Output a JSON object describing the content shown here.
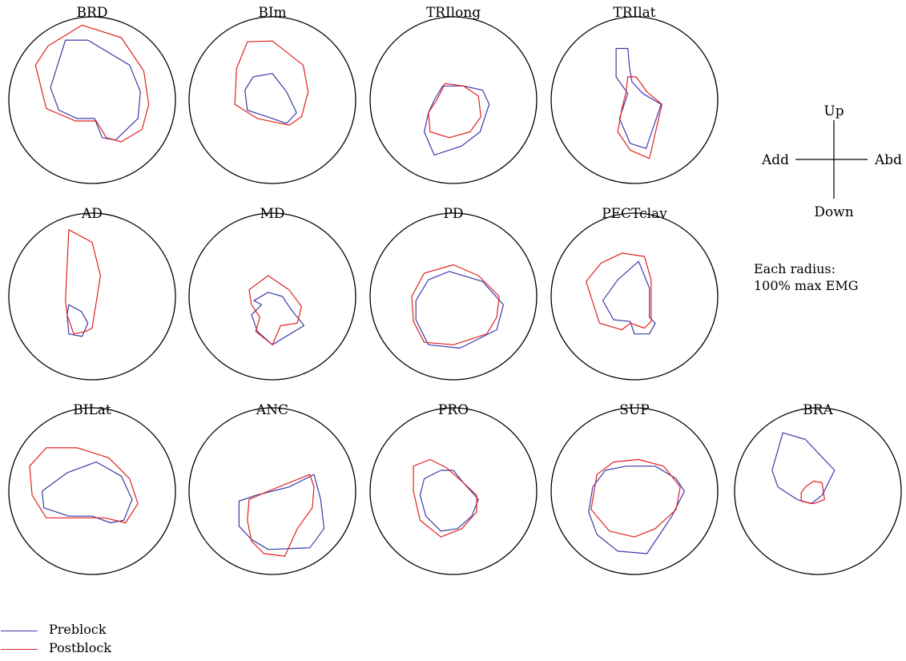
{
  "colors": {
    "preblock": "#3b3bab",
    "postblock": "#e02020"
  },
  "chart_data": {
    "type": "polar",
    "grid": false,
    "legend_placement": "bottom-left",
    "series_names": [
      "Preblock",
      "Postblock"
    ],
    "compass": {
      "up": "Up",
      "down": "Down",
      "left": "Add",
      "right": "Abd"
    },
    "note": [
      "Each radius:",
      "100% max EMG"
    ],
    "muscles": [
      {
        "name": "BRD",
        "preblock": [
          [
            -0.32,
            0.72
          ],
          [
            -0.05,
            0.72
          ],
          [
            0.45,
            0.42
          ],
          [
            0.58,
            0.1
          ],
          [
            0.55,
            -0.22
          ],
          [
            0.28,
            -0.48
          ],
          [
            0.12,
            -0.45
          ],
          [
            0.03,
            -0.22
          ],
          [
            -0.18,
            -0.22
          ],
          [
            -0.4,
            -0.12
          ],
          [
            -0.5,
            0.15
          ]
        ],
        "postblock": [
          [
            -0.68,
            0.42
          ],
          [
            -0.53,
            0.65
          ],
          [
            -0.12,
            0.9
          ],
          [
            0.35,
            0.75
          ],
          [
            0.62,
            0.35
          ],
          [
            0.68,
            -0.05
          ],
          [
            0.6,
            -0.35
          ],
          [
            0.35,
            -0.5
          ],
          [
            0.17,
            -0.45
          ],
          [
            0.05,
            -0.25
          ],
          [
            -0.2,
            -0.25
          ],
          [
            -0.55,
            -0.1
          ]
        ]
      },
      {
        "name": "BIm",
        "preblock": [
          [
            -0.33,
            0.12
          ],
          [
            -0.23,
            0.28
          ],
          [
            0.0,
            0.32
          ],
          [
            0.17,
            0.1
          ],
          [
            0.29,
            -0.15
          ],
          [
            0.17,
            -0.28
          ],
          [
            -0.06,
            -0.2
          ],
          [
            -0.3,
            -0.12
          ]
        ],
        "postblock": [
          [
            -0.3,
            0.7
          ],
          [
            0.0,
            0.71
          ],
          [
            0.37,
            0.42
          ],
          [
            0.43,
            0.1
          ],
          [
            0.35,
            -0.2
          ],
          [
            0.2,
            -0.3
          ],
          [
            -0.18,
            -0.22
          ],
          [
            -0.45,
            -0.05
          ],
          [
            -0.43,
            0.38
          ]
        ]
      },
      {
        "name": "TRIlong",
        "preblock": [
          [
            -0.23,
            0.0
          ],
          [
            -0.13,
            0.17
          ],
          [
            0.12,
            0.17
          ],
          [
            0.35,
            0.12
          ],
          [
            0.43,
            -0.05
          ],
          [
            0.32,
            -0.38
          ],
          [
            0.1,
            -0.55
          ],
          [
            -0.23,
            -0.66
          ],
          [
            -0.35,
            -0.38
          ],
          [
            -0.3,
            -0.15
          ]
        ],
        "postblock": [
          [
            -0.2,
            0.0
          ],
          [
            -0.1,
            0.2
          ],
          [
            0.12,
            0.17
          ],
          [
            0.3,
            0.05
          ],
          [
            0.33,
            -0.2
          ],
          [
            0.2,
            -0.38
          ],
          [
            -0.05,
            -0.45
          ],
          [
            -0.28,
            -0.38
          ],
          [
            -0.3,
            -0.15
          ]
        ]
      },
      {
        "name": "TRIlat",
        "preblock": [
          [
            -0.22,
            0.62
          ],
          [
            -0.08,
            0.62
          ],
          [
            -0.06,
            0.4
          ],
          [
            -0.03,
            0.22
          ],
          [
            0.1,
            0.08
          ],
          [
            0.32,
            -0.05
          ],
          [
            0.14,
            -0.58
          ],
          [
            -0.05,
            -0.52
          ],
          [
            -0.18,
            -0.22
          ],
          [
            -0.08,
            0.08
          ],
          [
            -0.22,
            0.28
          ]
        ],
        "postblock": [
          [
            -0.08,
            0.28
          ],
          [
            0.02,
            0.28
          ],
          [
            0.15,
            0.1
          ],
          [
            0.33,
            -0.05
          ],
          [
            0.18,
            -0.7
          ],
          [
            -0.05,
            -0.6
          ],
          [
            -0.2,
            -0.38
          ],
          [
            -0.15,
            -0.1
          ],
          [
            -0.1,
            0.1
          ]
        ]
      },
      {
        "name": "AD",
        "preblock": [
          [
            -0.28,
            -0.1
          ],
          [
            -0.13,
            -0.18
          ],
          [
            -0.05,
            -0.32
          ],
          [
            -0.12,
            -0.48
          ],
          [
            -0.28,
            -0.45
          ],
          [
            -0.3,
            -0.22
          ]
        ],
        "postblock": [
          [
            -0.28,
            0.8
          ],
          [
            0.0,
            0.65
          ],
          [
            0.1,
            0.25
          ],
          [
            0.0,
            -0.38
          ],
          [
            -0.08,
            -0.42
          ],
          [
            -0.22,
            -0.45
          ],
          [
            -0.3,
            -0.22
          ],
          [
            -0.32,
            -0.05
          ]
        ]
      },
      {
        "name": "MD",
        "preblock": [
          [
            -0.22,
            -0.05
          ],
          [
            -0.05,
            0.05
          ],
          [
            0.12,
            0.0
          ],
          [
            0.22,
            -0.15
          ],
          [
            0.38,
            -0.35
          ],
          [
            0.0,
            -0.58
          ],
          [
            -0.18,
            -0.42
          ],
          [
            -0.25,
            -0.22
          ],
          [
            -0.13,
            -0.1
          ]
        ],
        "postblock": [
          [
            -0.28,
            0.08
          ],
          [
            -0.05,
            0.25
          ],
          [
            0.2,
            0.08
          ],
          [
            0.35,
            -0.12
          ],
          [
            0.3,
            -0.32
          ],
          [
            0.1,
            -0.35
          ],
          [
            0.0,
            -0.58
          ],
          [
            -0.2,
            -0.42
          ],
          [
            -0.15,
            -0.25
          ],
          [
            -0.25,
            -0.1
          ]
        ]
      },
      {
        "name": "PD",
        "preblock": [
          [
            -0.45,
            -0.05
          ],
          [
            -0.3,
            0.2
          ],
          [
            -0.05,
            0.3
          ],
          [
            0.35,
            0.18
          ],
          [
            0.6,
            -0.1
          ],
          [
            0.52,
            -0.4
          ],
          [
            0.08,
            -0.62
          ],
          [
            -0.3,
            -0.58
          ],
          [
            -0.45,
            -0.28
          ]
        ],
        "postblock": [
          [
            -0.5,
            0.0
          ],
          [
            -0.35,
            0.28
          ],
          [
            0.0,
            0.38
          ],
          [
            0.3,
            0.25
          ],
          [
            0.55,
            0.0
          ],
          [
            0.52,
            -0.25
          ],
          [
            0.4,
            -0.45
          ],
          [
            0.0,
            -0.58
          ],
          [
            -0.35,
            -0.55
          ],
          [
            -0.48,
            -0.3
          ]
        ]
      },
      {
        "name": "PECTclav",
        "preblock": [
          [
            -0.38,
            -0.05
          ],
          [
            -0.2,
            0.2
          ],
          [
            0.05,
            0.42
          ],
          [
            0.18,
            0.1
          ],
          [
            0.18,
            -0.25
          ],
          [
            0.25,
            -0.32
          ],
          [
            0.18,
            -0.45
          ],
          [
            0.0,
            -0.45
          ],
          [
            -0.05,
            -0.3
          ],
          [
            -0.25,
            -0.28
          ]
        ],
        "postblock": [
          [
            -0.58,
            0.18
          ],
          [
            -0.4,
            0.4
          ],
          [
            -0.15,
            0.52
          ],
          [
            0.12,
            0.48
          ],
          [
            0.2,
            0.2
          ],
          [
            0.2,
            -0.3
          ],
          [
            0.12,
            -0.38
          ],
          [
            -0.05,
            -0.32
          ],
          [
            -0.15,
            -0.4
          ],
          [
            -0.42,
            -0.32
          ]
        ]
      },
      {
        "name": "BILat",
        "preblock": [
          [
            -0.6,
            0.0
          ],
          [
            -0.3,
            0.22
          ],
          [
            0.05,
            0.35
          ],
          [
            0.35,
            0.18
          ],
          [
            0.48,
            -0.1
          ],
          [
            0.38,
            -0.35
          ],
          [
            0.22,
            -0.38
          ],
          [
            0.0,
            -0.3
          ],
          [
            -0.28,
            -0.3
          ],
          [
            -0.58,
            -0.2
          ]
        ],
        "postblock": [
          [
            -0.75,
            0.3
          ],
          [
            -0.55,
            0.52
          ],
          [
            -0.18,
            0.52
          ],
          [
            0.2,
            0.4
          ],
          [
            0.45,
            0.15
          ],
          [
            0.55,
            -0.15
          ],
          [
            0.4,
            -0.38
          ],
          [
            0.15,
            -0.32
          ],
          [
            -0.2,
            -0.32
          ],
          [
            -0.55,
            -0.32
          ],
          [
            -0.72,
            -0.05
          ]
        ]
      },
      {
        "name": "ANC",
        "preblock": [
          [
            -0.4,
            -0.12
          ],
          [
            -0.2,
            -0.05
          ],
          [
            0.0,
            0.0
          ],
          [
            0.2,
            0.05
          ],
          [
            0.5,
            0.2
          ],
          [
            0.58,
            -0.1
          ],
          [
            0.62,
            -0.45
          ],
          [
            0.45,
            -0.68
          ],
          [
            -0.05,
            -0.7
          ],
          [
            -0.25,
            -0.58
          ],
          [
            -0.4,
            -0.42
          ]
        ],
        "postblock": [
          [
            -0.28,
            -0.1
          ],
          [
            -0.05,
            0.0
          ],
          [
            0.2,
            0.1
          ],
          [
            0.45,
            0.2
          ],
          [
            0.5,
            0.05
          ],
          [
            0.48,
            -0.2
          ],
          [
            0.3,
            -0.45
          ],
          [
            0.15,
            -0.78
          ],
          [
            -0.1,
            -0.75
          ],
          [
            -0.25,
            -0.6
          ],
          [
            -0.3,
            -0.35
          ]
        ]
      },
      {
        "name": "PRO",
        "preblock": [
          [
            -0.35,
            0.15
          ],
          [
            -0.15,
            0.25
          ],
          [
            0.0,
            0.25
          ],
          [
            0.12,
            0.1
          ],
          [
            0.3,
            -0.1
          ],
          [
            0.22,
            -0.3
          ],
          [
            0.05,
            -0.45
          ],
          [
            -0.15,
            -0.48
          ],
          [
            -0.33,
            -0.3
          ],
          [
            -0.4,
            -0.05
          ]
        ],
        "postblock": [
          [
            -0.48,
            0.3
          ],
          [
            -0.28,
            0.38
          ],
          [
            -0.08,
            0.28
          ],
          [
            0.12,
            0.1
          ],
          [
            0.28,
            -0.05
          ],
          [
            0.28,
            -0.25
          ],
          [
            0.1,
            -0.45
          ],
          [
            -0.15,
            -0.55
          ],
          [
            -0.4,
            -0.35
          ],
          [
            -0.48,
            0.0
          ]
        ]
      },
      {
        "name": "SUP",
        "preblock": [
          [
            -0.5,
            0.05
          ],
          [
            -0.35,
            0.25
          ],
          [
            -0.1,
            0.3
          ],
          [
            0.25,
            0.3
          ],
          [
            0.5,
            0.15
          ],
          [
            0.6,
            0.0
          ],
          [
            0.45,
            -0.3
          ],
          [
            0.15,
            -0.75
          ],
          [
            -0.2,
            -0.72
          ],
          [
            -0.45,
            -0.52
          ],
          [
            -0.55,
            -0.25
          ]
        ],
        "postblock": [
          [
            -0.45,
            0.2
          ],
          [
            -0.25,
            0.35
          ],
          [
            0.05,
            0.38
          ],
          [
            0.35,
            0.3
          ],
          [
            0.55,
            0.05
          ],
          [
            0.5,
            -0.22
          ],
          [
            0.25,
            -0.45
          ],
          [
            0.0,
            -0.55
          ],
          [
            -0.3,
            -0.48
          ],
          [
            -0.52,
            -0.22
          ]
        ]
      },
      {
        "name": "BRA",
        "preblock": [
          [
            -0.55,
            0.25
          ],
          [
            -0.42,
            0.7
          ],
          [
            -0.15,
            0.62
          ],
          [
            0.2,
            0.25
          ],
          [
            0.05,
            -0.05
          ],
          [
            -0.08,
            -0.15
          ],
          [
            -0.25,
            -0.1
          ],
          [
            -0.48,
            0.05
          ]
        ],
        "postblock": [
          [
            -0.15,
            0.05
          ],
          [
            -0.05,
            0.12
          ],
          [
            0.05,
            0.1
          ],
          [
            0.08,
            -0.1
          ],
          [
            -0.05,
            -0.15
          ],
          [
            -0.2,
            -0.12
          ],
          [
            -0.2,
            -0.02
          ]
        ]
      }
    ]
  }
}
